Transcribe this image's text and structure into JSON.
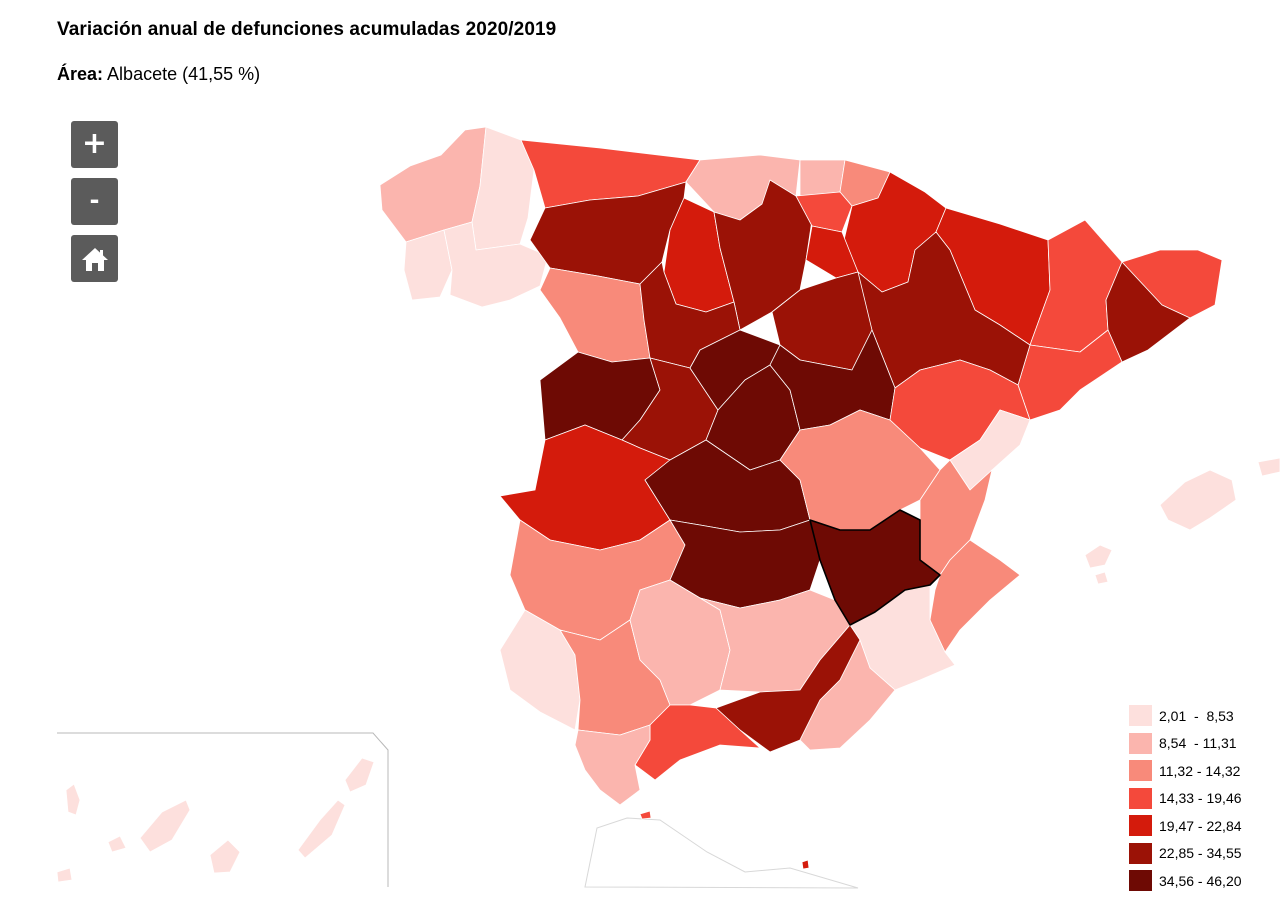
{
  "header": {
    "title": "Variación anual de defunciones acumuladas 2020/2019",
    "area_label": "Área:",
    "area_value": "Albacete (41,55 %)"
  },
  "controls": {
    "zoom_in_icon": "plus-icon",
    "zoom_out_icon": "minus-icon",
    "home_icon": "home-icon"
  },
  "map": {
    "selected_province": "Albacete",
    "selected_value_pct": 41.55,
    "border_color": "#ffffff",
    "selected_border_color": "#000000"
  },
  "legend": {
    "classes": [
      {
        "label": "2,01  -  8,53",
        "color": "#fde0dd"
      },
      {
        "label": "8,54  - 11,31",
        "color": "#fbb5ae"
      },
      {
        "label": "11,32 - 14,32",
        "color": "#f88a7a"
      },
      {
        "label": "14,33 - 19,46",
        "color": "#f4493b"
      },
      {
        "label": "19,47 - 22,84",
        "color": "#d41b0c"
      },
      {
        "label": "22,85 - 34,55",
        "color": "#9b1206"
      },
      {
        "label": "34,56 - 46,20",
        "color": "#6e0a04"
      }
    ]
  }
}
